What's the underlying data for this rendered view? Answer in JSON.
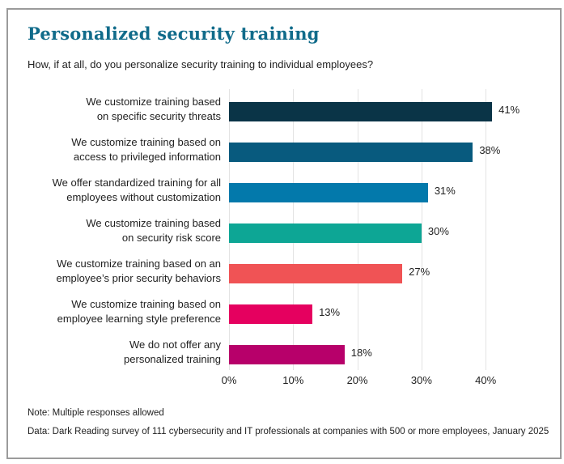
{
  "header": {
    "title": "Personalized security training",
    "subtitle": "How, if at all, do you personalize security training to individual employees?"
  },
  "chart_data": {
    "type": "bar",
    "orientation": "horizontal",
    "title": "Personalized security training",
    "subtitle": "How, if at all, do you personalize security training to individual employees?",
    "categories": [
      [
        "We customize training based",
        "on specific security threats"
      ],
      [
        "We customize training based on",
        "access to privileged information"
      ],
      [
        "We offer standardized training for all",
        "employees without customization"
      ],
      [
        "We customize training based",
        "on security risk score"
      ],
      [
        "We customize training based on an",
        "employee’s prior security behaviors"
      ],
      [
        "We customize training based on",
        "employee learning style preference"
      ],
      [
        "We do not offer any",
        "personalized training"
      ]
    ],
    "values": [
      41,
      38,
      31,
      30,
      27,
      13,
      18
    ],
    "value_labels": [
      "41%",
      "38%",
      "31%",
      "30%",
      "27%",
      "13%",
      "18%"
    ],
    "bar_colors": [
      "#0a3447",
      "#085a7e",
      "#0379ab",
      "#0da695",
      "#f05355",
      "#e5005f",
      "#b7006a"
    ],
    "x_ticks": [
      "0%",
      "10%",
      "20%",
      "30%",
      "40%"
    ],
    "x_tick_values": [
      0,
      10,
      20,
      30,
      40
    ],
    "xlabel": "",
    "ylabel": "",
    "xlim": [
      0,
      40
    ],
    "grid": "vertical",
    "legend": "none"
  },
  "notes": {
    "note": "Note: Multiple responses allowed",
    "source": "Data: Dark Reading survey of 111 cybersecurity and IT professionals at companies with 500 or more employees, January 2025"
  },
  "colors": {
    "title": "#106b8a",
    "text": "#1f1f1f",
    "border": "#9b9b9b",
    "gridline": "#e3e3e3"
  }
}
